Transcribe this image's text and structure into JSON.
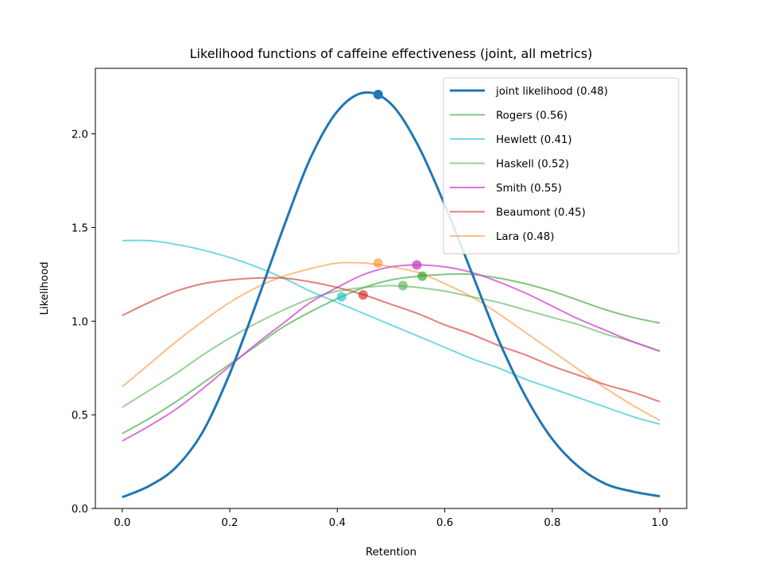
{
  "chart_data": {
    "type": "line",
    "title": "Likelihood functions of caffeine effectiveness (joint, all metrics)",
    "xlabel": "Retention",
    "ylabel": "Likelihood",
    "xlim": [
      -0.05,
      1.05
    ],
    "ylim": [
      0,
      2.35
    ],
    "x_ticks": [
      0.0,
      0.2,
      0.4,
      0.6,
      0.8,
      1.0
    ],
    "x_tick_labels": [
      "0.0",
      "0.2",
      "0.4",
      "0.6",
      "0.8",
      "1.0"
    ],
    "y_ticks": [
      0.0,
      0.5,
      1.0,
      1.5,
      2.0
    ],
    "y_tick_labels": [
      "0.0",
      "0.5",
      "1.0",
      "1.5",
      "2.0"
    ],
    "grid": false,
    "legend_position": "top-right",
    "x": [
      0.0,
      0.05,
      0.1,
      0.15,
      0.2,
      0.25,
      0.3,
      0.35,
      0.4,
      0.45,
      0.5,
      0.55,
      0.6,
      0.65,
      0.7,
      0.75,
      0.8,
      0.85,
      0.9,
      0.95,
      1.0
    ],
    "series": [
      {
        "name": "joint likelihood (0.48)",
        "color": "#1f77b4",
        "width": 3,
        "opacity": 1,
        "marker_x": 0.476,
        "marker_y": 2.21,
        "values": [
          0.06,
          0.12,
          0.22,
          0.41,
          0.72,
          1.1,
          1.5,
          1.87,
          2.12,
          2.22,
          2.16,
          1.94,
          1.62,
          1.26,
          0.9,
          0.6,
          0.37,
          0.22,
          0.13,
          0.09,
          0.065
        ]
      },
      {
        "name": "Rogers (0.56)",
        "color": "#2ca02c",
        "width": 2,
        "opacity": 0.6,
        "marker_x": 0.558,
        "marker_y": 1.24,
        "values": [
          0.4,
          0.48,
          0.57,
          0.67,
          0.77,
          0.87,
          0.97,
          1.05,
          1.12,
          1.18,
          1.22,
          1.24,
          1.25,
          1.25,
          1.23,
          1.2,
          1.16,
          1.11,
          1.06,
          1.02,
          0.99
        ]
      },
      {
        "name": "Hewlett (0.41)",
        "color": "#17becf",
        "width": 2,
        "opacity": 0.6,
        "marker_x": 0.408,
        "marker_y": 1.13,
        "values": [
          1.43,
          1.43,
          1.41,
          1.38,
          1.34,
          1.29,
          1.23,
          1.16,
          1.1,
          1.04,
          0.98,
          0.92,
          0.86,
          0.8,
          0.75,
          0.69,
          0.64,
          0.59,
          0.54,
          0.49,
          0.45
        ]
      },
      {
        "name": "Haskell (0.52)",
        "color": "#55b055",
        "width": 2,
        "opacity": 0.6,
        "marker_x": 0.522,
        "marker_y": 1.19,
        "values": [
          0.54,
          0.63,
          0.72,
          0.82,
          0.91,
          0.99,
          1.06,
          1.12,
          1.16,
          1.18,
          1.19,
          1.18,
          1.16,
          1.13,
          1.1,
          1.06,
          1.02,
          0.98,
          0.93,
          0.89,
          0.84
        ]
      },
      {
        "name": "Smith (0.55)",
        "color": "#cc44cc",
        "width": 2,
        "opacity": 0.75,
        "marker_x": 0.548,
        "marker_y": 1.3,
        "values": [
          0.36,
          0.44,
          0.53,
          0.64,
          0.76,
          0.88,
          0.99,
          1.1,
          1.18,
          1.25,
          1.29,
          1.3,
          1.29,
          1.26,
          1.21,
          1.15,
          1.08,
          1.01,
          0.95,
          0.89,
          0.84
        ]
      },
      {
        "name": "Beaumont (0.45)",
        "color": "#d62728",
        "width": 2,
        "opacity": 0.6,
        "marker_x": 0.448,
        "marker_y": 1.14,
        "values": [
          1.03,
          1.1,
          1.16,
          1.2,
          1.22,
          1.23,
          1.23,
          1.21,
          1.18,
          1.14,
          1.09,
          1.04,
          0.98,
          0.93,
          0.87,
          0.82,
          0.76,
          0.71,
          0.66,
          0.62,
          0.57
        ]
      },
      {
        "name": "Lara (0.48)",
        "color": "#ff7f0e",
        "width": 2,
        "opacity": 0.5,
        "marker_x": 0.476,
        "marker_y": 1.31,
        "values": [
          0.65,
          0.77,
          0.89,
          1.0,
          1.1,
          1.18,
          1.24,
          1.28,
          1.31,
          1.31,
          1.29,
          1.26,
          1.2,
          1.13,
          1.04,
          0.94,
          0.84,
          0.74,
          0.64,
          0.55,
          0.47
        ]
      }
    ]
  }
}
